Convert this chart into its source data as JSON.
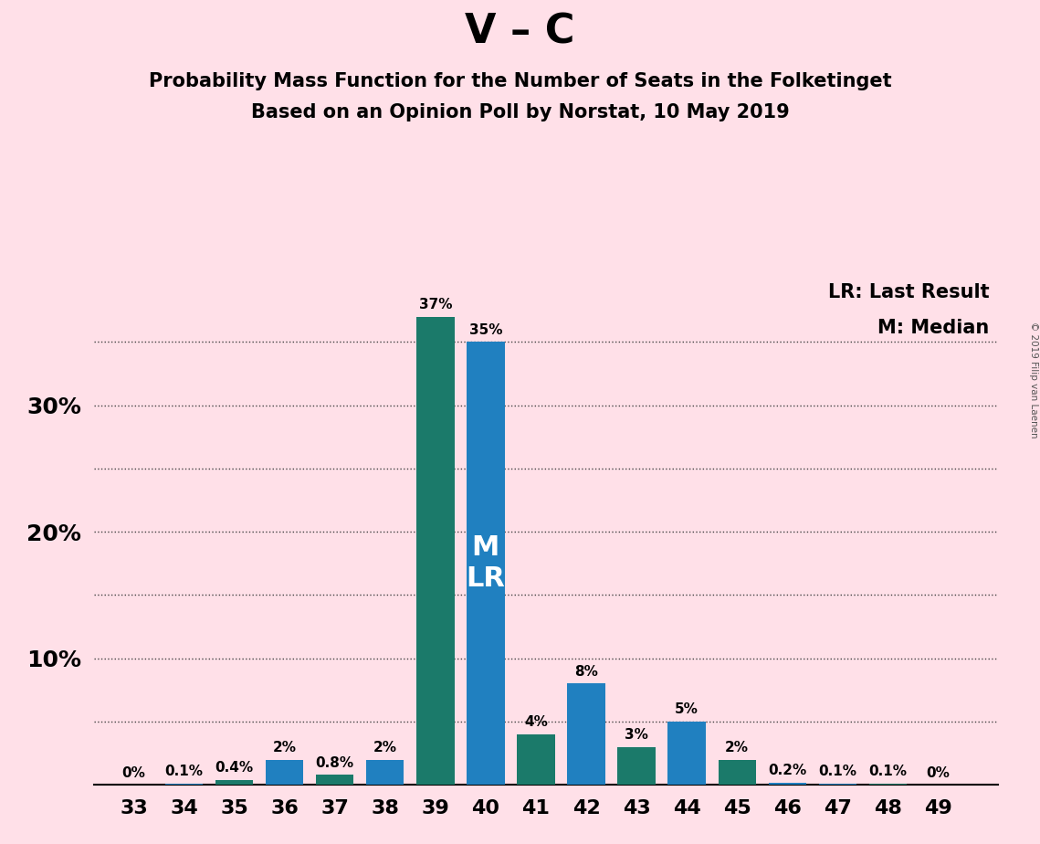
{
  "title_main": "V – C",
  "title_sub1": "Probability Mass Function for the Number of Seats in the Folketinget",
  "title_sub2": "Based on an Opinion Poll by Norstat, 10 May 2019",
  "copyright": "© 2019 Filip van Laenen",
  "seats": [
    33,
    34,
    35,
    36,
    37,
    38,
    39,
    40,
    41,
    42,
    43,
    44,
    45,
    46,
    47,
    48,
    49
  ],
  "values": [
    0.0,
    0.1,
    0.4,
    2.0,
    0.8,
    2.0,
    37.0,
    35.0,
    4.0,
    8.0,
    3.0,
    5.0,
    2.0,
    0.2,
    0.1,
    0.1,
    0.0
  ],
  "labels": [
    "0%",
    "0.1%",
    "0.4%",
    "2%",
    "0.8%",
    "2%",
    "37%",
    "35%",
    "4%",
    "8%",
    "3%",
    "5%",
    "2%",
    "0.2%",
    "0.1%",
    "0.1%",
    "0%"
  ],
  "colors": [
    "#2080C0",
    "#2080C0",
    "#1B7A6A",
    "#2080C0",
    "#1B7A6A",
    "#2080C0",
    "#1B7A6A",
    "#2080C0",
    "#1B7A6A",
    "#2080C0",
    "#1B7A6A",
    "#2080C0",
    "#1B7A6A",
    "#2080C0",
    "#2080C0",
    "#1B7A6A",
    "#2080C0"
  ],
  "median_seat": 40,
  "background_color": "#FFE0E8",
  "bar_label_fontsize": 11,
  "title_main_fontsize": 32,
  "title_sub_fontsize": 15,
  "ytick_labels": [
    10,
    20,
    30
  ],
  "ygrid_ticks": [
    5,
    10,
    15,
    20,
    25,
    30,
    35
  ],
  "ylim": [
    0,
    40
  ],
  "legend_lr": "LR: Last Result",
  "legend_m": "M: Median"
}
